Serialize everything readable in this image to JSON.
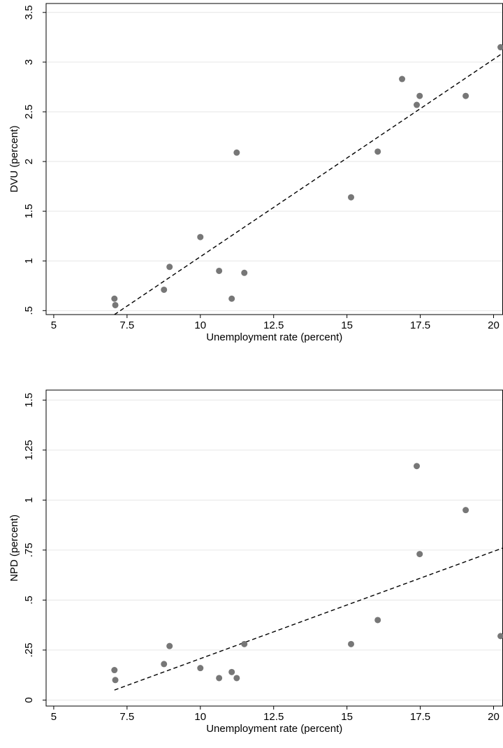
{
  "chart_data": [
    {
      "type": "scatter",
      "xlabel": "Unemployment rate (percent)",
      "ylabel": "DVU (percent)",
      "x": [
        7.07,
        7.1,
        8.76,
        8.95,
        10.0,
        10.64,
        11.07,
        11.24,
        11.5,
        15.14,
        16.05,
        16.88,
        17.38,
        17.48,
        19.05,
        20.24
      ],
      "y": [
        0.62,
        0.555,
        0.71,
        0.94,
        1.24,
        0.9,
        0.62,
        2.09,
        0.88,
        1.64,
        2.1,
        2.83,
        2.57,
        2.66,
        2.66,
        3.15
      ],
      "color": "#777777",
      "fit_line": {
        "x": [
          7.07,
          20.31
        ],
        "y": [
          0.46,
          3.09
        ]
      },
      "xlim": [
        4.74,
        20.31
      ],
      "ylim": [
        0.46,
        3.59
      ],
      "xticks": [
        5,
        7.5,
        10,
        12.5,
        15,
        17.5,
        20
      ],
      "yticks": [
        {
          "value": 0.5,
          "label": ".5"
        },
        1,
        1.5,
        2,
        2.5,
        3,
        3.5
      ],
      "grid": true
    },
    {
      "type": "scatter",
      "xlabel": "Unemployment rate (percent)",
      "ylabel": "NPD (percent)",
      "x": [
        7.07,
        7.1,
        8.76,
        8.95,
        10.0,
        10.64,
        11.07,
        11.24,
        11.5,
        15.14,
        16.05,
        17.38,
        17.48,
        19.05,
        20.24
      ],
      "y": [
        0.15,
        0.1,
        0.18,
        0.27,
        0.16,
        0.11,
        0.14,
        0.11,
        0.28,
        0.28,
        0.4,
        1.17,
        0.73,
        0.95,
        0.32
      ],
      "color": "#777777",
      "fit_line": {
        "x": [
          7.07,
          20.31
        ],
        "y": [
          0.05,
          0.76
        ]
      },
      "xlim": [
        4.74,
        20.31
      ],
      "ylim": [
        -0.03,
        1.55
      ],
      "xticks": [
        5,
        7.5,
        10,
        12.5,
        15,
        17.5,
        20
      ],
      "yticks": [
        0,
        {
          "value": 0.25,
          "label": ".25"
        },
        {
          "value": 0.5,
          "label": ".5"
        },
        {
          "value": 0.75,
          "label": ".75"
        },
        1,
        1.25,
        1.5
      ],
      "grid": true
    }
  ]
}
